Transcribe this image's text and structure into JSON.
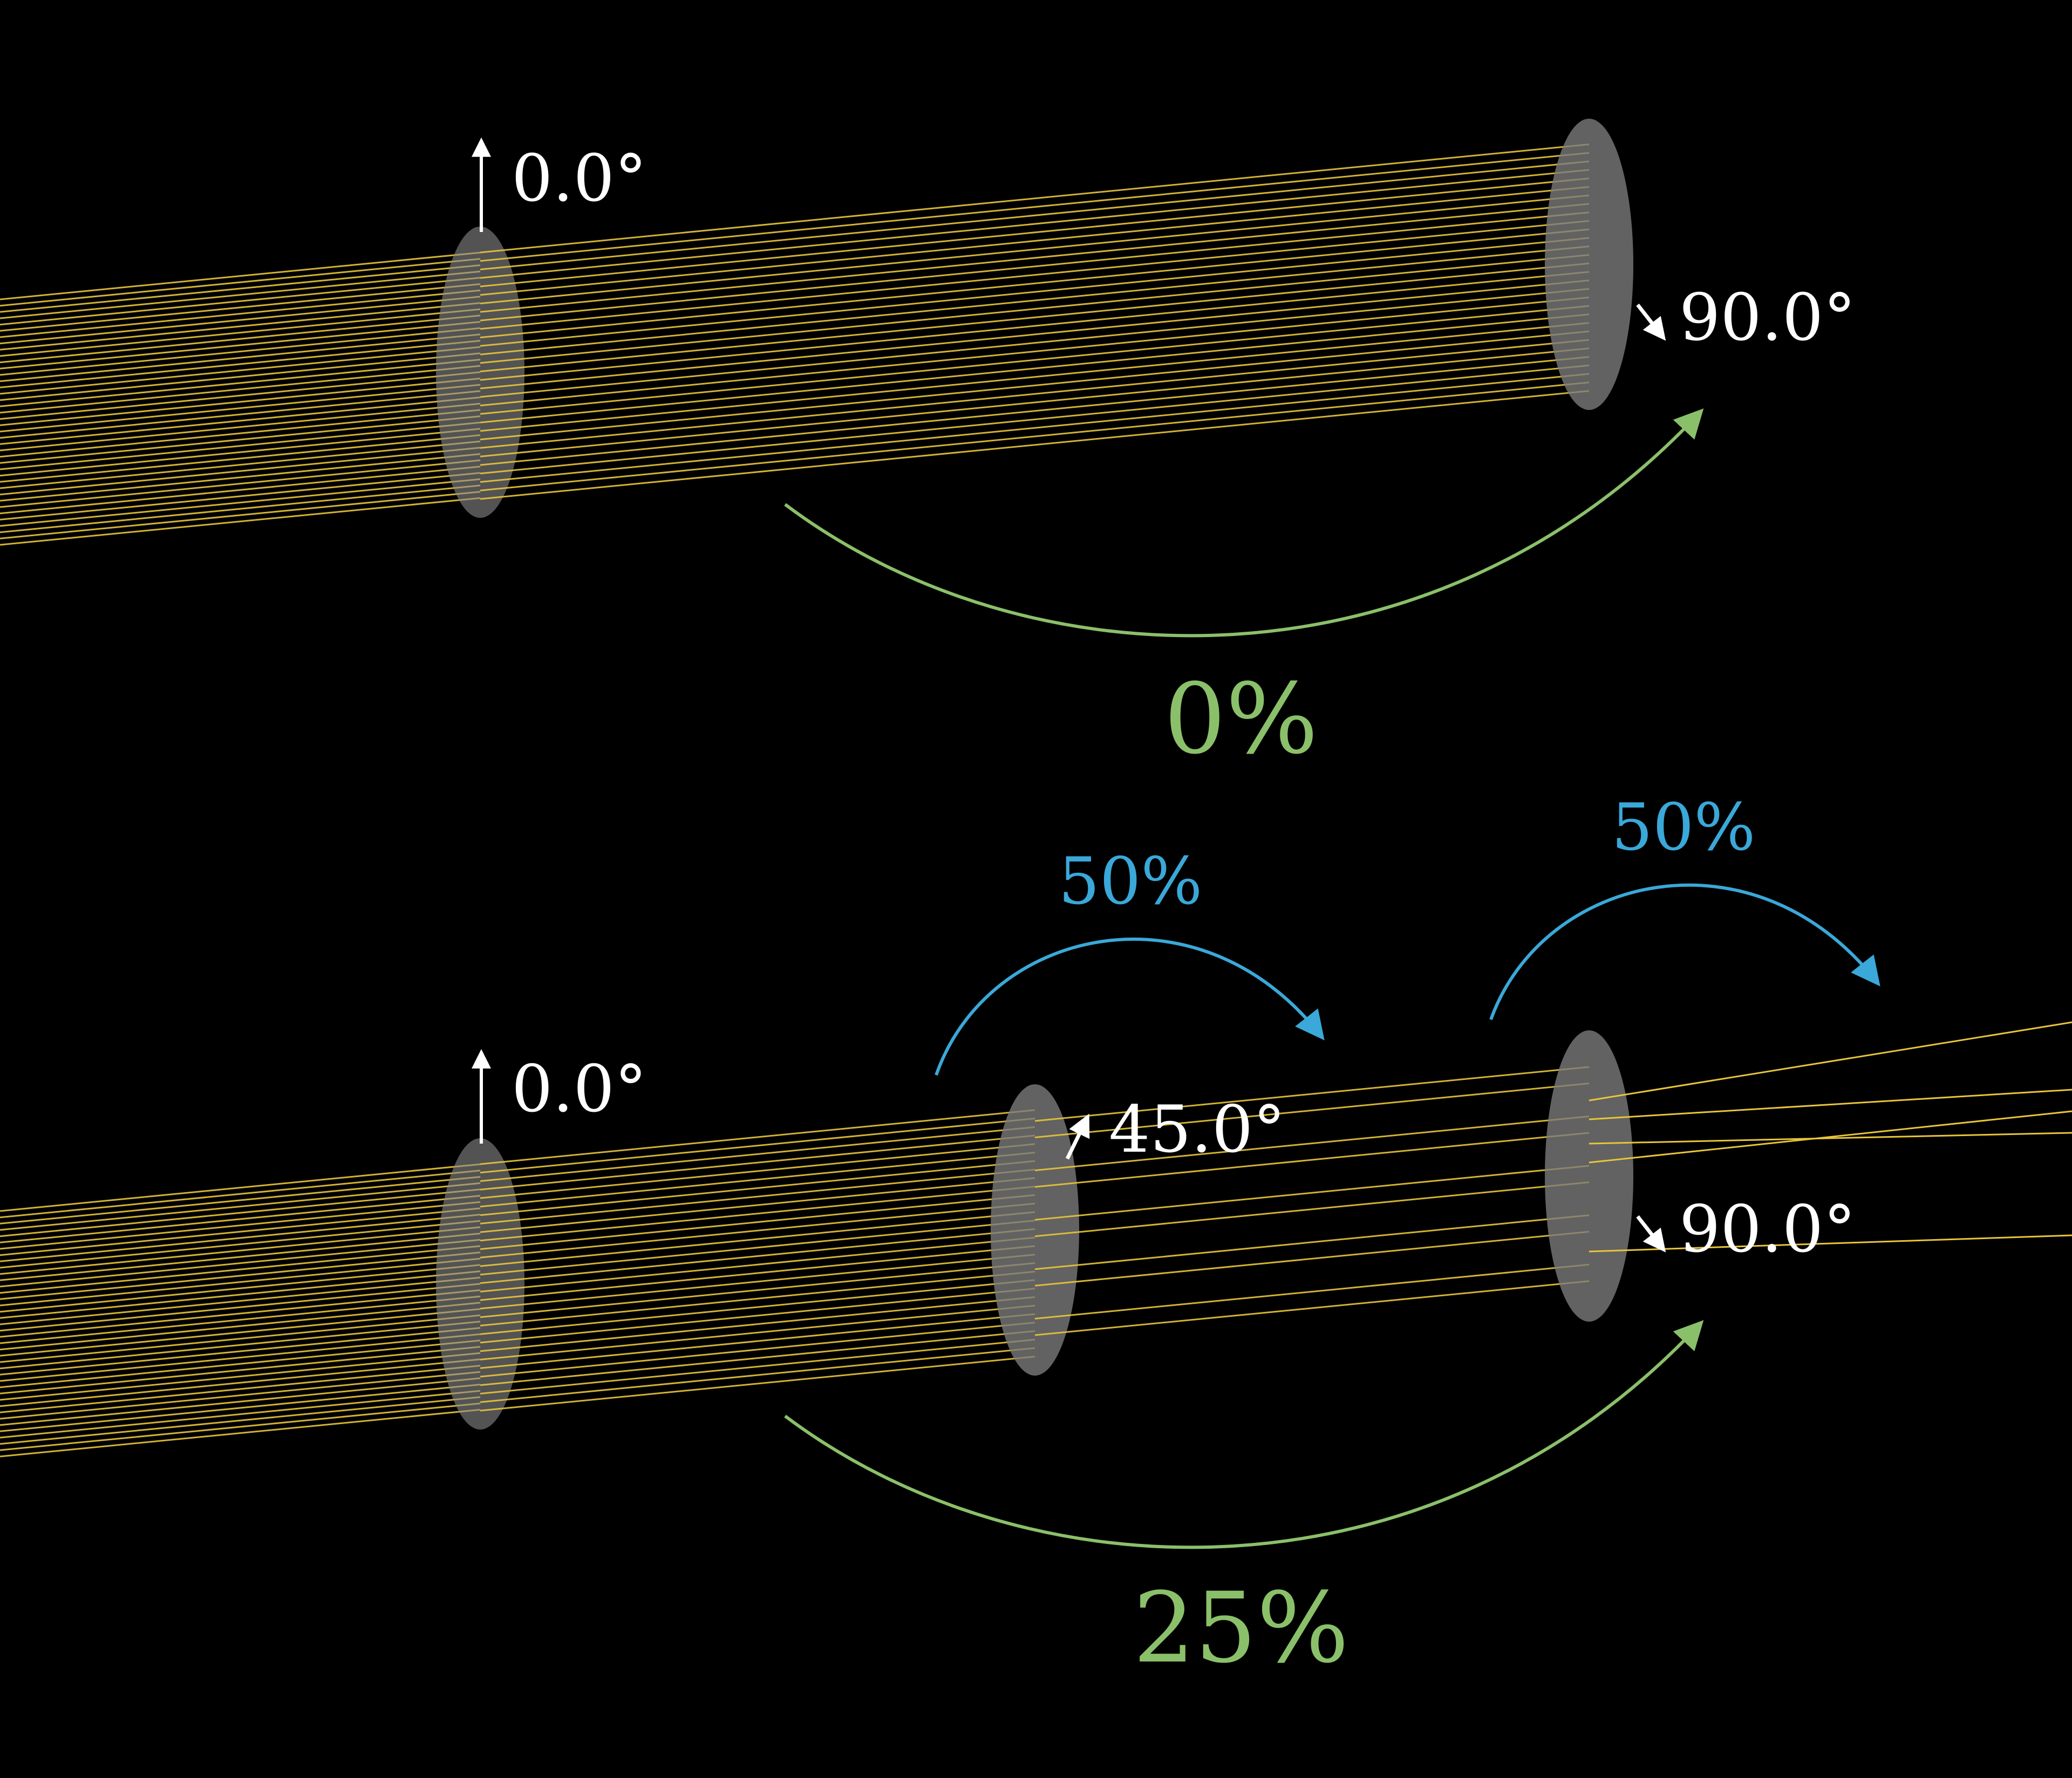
{
  "top": {
    "filter1_angle": "0.0°",
    "filter2_angle": "90.0°",
    "pass_percent": "0%"
  },
  "bottom": {
    "filter1_angle": "0.0°",
    "filter2_angle": "45.0°",
    "filter3_angle": "90.0°",
    "step1_percent": "50%",
    "step2_percent": "50%",
    "pass_percent": "25%"
  },
  "colors": {
    "background": "#000000",
    "beam": "#e8c53a",
    "filter": "#7a7a7a",
    "green": "#8bc06a",
    "blue": "#3aa8d8",
    "white": "#ffffff"
  }
}
